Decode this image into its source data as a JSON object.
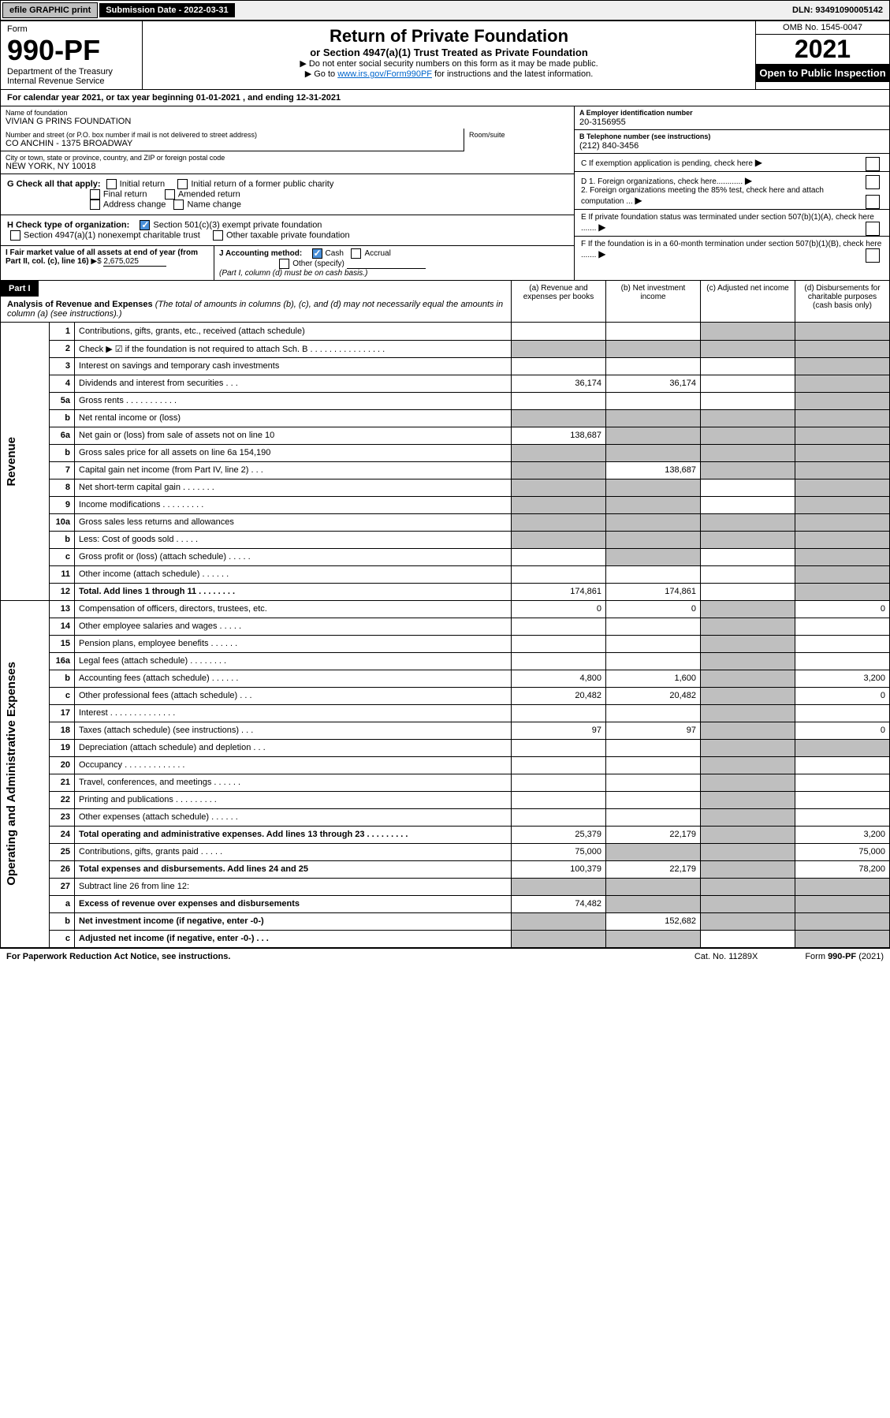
{
  "topbar": {
    "efile": "efile GRAPHIC print",
    "sub_label": "Submission Date - 2022-03-31",
    "dln": "DLN: 93491090005142"
  },
  "header": {
    "form_label": "Form",
    "form_no": "990-PF",
    "dept": "Department of the Treasury",
    "irs": "Internal Revenue Service",
    "title": "Return of Private Foundation",
    "subtitle": "or Section 4947(a)(1) Trust Treated as Private Foundation",
    "inst1": "▶ Do not enter social security numbers on this form as it may be made public.",
    "inst2_a": "▶ Go to ",
    "inst2_link": "www.irs.gov/Form990PF",
    "inst2_b": " for instructions and the latest information.",
    "omb": "OMB No. 1545-0047",
    "year": "2021",
    "inspect": "Open to Public Inspection"
  },
  "calyear": "For calendar year 2021, or tax year beginning 01-01-2021              , and ending 12-31-2021",
  "info": {
    "name_label": "Name of foundation",
    "name": "VIVIAN G PRINS FOUNDATION",
    "addr_label": "Number and street (or P.O. box number if mail is not delivered to street address)",
    "addr": "CO ANCHIN - 1375 BROADWAY",
    "room_label": "Room/suite",
    "city_label": "City or town, state or province, country, and ZIP or foreign postal code",
    "city": "NEW YORK, NY  10018",
    "ein_label": "A Employer identification number",
    "ein": "20-3156955",
    "tel_label": "B Telephone number (see instructions)",
    "tel": "(212) 840-3456",
    "c_label": "C If exemption application is pending, check here",
    "d1": "D 1. Foreign organizations, check here............",
    "d2": "2. Foreign organizations meeting the 85% test, check here and attach computation ...",
    "e_label": "E  If private foundation status was terminated under section 507(b)(1)(A), check here .......",
    "f_label": "F  If the foundation is in a 60-month termination under section 507(b)(1)(B), check here ......."
  },
  "checks": {
    "g_label": "G Check all that apply:",
    "initial": "Initial return",
    "initial_former": "Initial return of a former public charity",
    "final": "Final return",
    "amended": "Amended return",
    "addr_change": "Address change",
    "name_change": "Name change",
    "h_label": "H Check type of organization:",
    "h1": "Section 501(c)(3) exempt private foundation",
    "h2": "Section 4947(a)(1) nonexempt charitable trust",
    "h3": "Other taxable private foundation",
    "i_label": "I Fair market value of all assets at end of year (from Part II, col. (c), line 16)",
    "i_val": "2,675,025",
    "j_label": "J Accounting method:",
    "j_cash": "Cash",
    "j_accrual": "Accrual",
    "j_other": "Other (specify)",
    "j_note": "(Part I, column (d) must be on cash basis.)"
  },
  "part1": {
    "label": "Part I",
    "title": "Analysis of Revenue and Expenses",
    "title_note": " (The total of amounts in columns (b), (c), and (d) may not necessarily equal the amounts in column (a) (see instructions).)",
    "col_a": "(a)   Revenue and expenses per books",
    "col_b": "(b)   Net investment income",
    "col_c": "(c)   Adjusted net income",
    "col_d": "(d)   Disbursements for charitable purposes (cash basis only)"
  },
  "sidelabels": {
    "revenue": "Revenue",
    "opex": "Operating and Administrative Expenses"
  },
  "rows": [
    {
      "n": "1",
      "d": "Contributions, gifts, grants, etc., received (attach schedule)",
      "a": "",
      "b": "",
      "c": "shade",
      "dd": "shade"
    },
    {
      "n": "2",
      "d": "Check ▶ ☑ if the foundation is not required to attach Sch. B   .  .  .  .  .  .  .  .  .  .  .  .  .  .  .  .",
      "a": "shade",
      "b": "shade",
      "c": "shade",
      "dd": "shade"
    },
    {
      "n": "3",
      "d": "Interest on savings and temporary cash investments",
      "a": "",
      "b": "",
      "c": "",
      "dd": "shade"
    },
    {
      "n": "4",
      "d": "Dividends and interest from securities   .   .   .",
      "a": "36,174",
      "b": "36,174",
      "c": "",
      "dd": "shade"
    },
    {
      "n": "5a",
      "d": "Gross rents   .   .   .   .   .   .   .   .   .   .   .",
      "a": "",
      "b": "",
      "c": "",
      "dd": "shade"
    },
    {
      "n": "b",
      "d": "Net rental income or (loss)  ",
      "a": "shade",
      "b": "shade",
      "c": "shade",
      "dd": "shade"
    },
    {
      "n": "6a",
      "d": "Net gain or (loss) from sale of assets not on line 10",
      "a": "138,687",
      "b": "shade",
      "c": "shade",
      "dd": "shade"
    },
    {
      "n": "b",
      "d": "Gross sales price for all assets on line 6a            154,190",
      "a": "shade",
      "b": "shade",
      "c": "shade",
      "dd": "shade"
    },
    {
      "n": "7",
      "d": "Capital gain net income (from Part IV, line 2)   .   .   .",
      "a": "shade",
      "b": "138,687",
      "c": "shade",
      "dd": "shade"
    },
    {
      "n": "8",
      "d": "Net short-term capital gain   .   .   .   .   .   .   .",
      "a": "shade",
      "b": "shade",
      "c": "",
      "dd": "shade"
    },
    {
      "n": "9",
      "d": "Income modifications  .   .   .   .   .   .   .   .   .",
      "a": "shade",
      "b": "shade",
      "c": "",
      "dd": "shade"
    },
    {
      "n": "10a",
      "d": "Gross sales less returns and allowances",
      "a": "shade",
      "b": "shade",
      "c": "shade",
      "dd": "shade"
    },
    {
      "n": "b",
      "d": "Less: Cost of goods sold   .   .   .   .   .",
      "a": "shade",
      "b": "shade",
      "c": "shade",
      "dd": "shade"
    },
    {
      "n": "c",
      "d": "Gross profit or (loss) (attach schedule)   .   .   .   .   .",
      "a": "",
      "b": "shade",
      "c": "",
      "dd": "shade"
    },
    {
      "n": "11",
      "d": "Other income (attach schedule)   .   .   .   .   .   .",
      "a": "",
      "b": "",
      "c": "",
      "dd": "shade"
    },
    {
      "n": "12",
      "d": "Total. Add lines 1 through 11   .   .   .   .   .   .   .   .",
      "a": "174,861",
      "b": "174,861",
      "c": "",
      "dd": "shade",
      "bold": true
    },
    {
      "n": "13",
      "d": "Compensation of officers, directors, trustees, etc.",
      "a": "0",
      "b": "0",
      "c": "shade",
      "dd": "0"
    },
    {
      "n": "14",
      "d": "Other employee salaries and wages   .   .   .   .   .",
      "a": "",
      "b": "",
      "c": "shade",
      "dd": ""
    },
    {
      "n": "15",
      "d": "Pension plans, employee benefits  .   .   .   .   .   .",
      "a": "",
      "b": "",
      "c": "shade",
      "dd": ""
    },
    {
      "n": "16a",
      "d": "Legal fees (attach schedule)  .   .   .   .   .   .   .   .",
      "a": "",
      "b": "",
      "c": "shade",
      "dd": ""
    },
    {
      "n": "b",
      "d": "Accounting fees (attach schedule)  .   .   .   .   .   .",
      "a": "4,800",
      "b": "1,600",
      "c": "shade",
      "dd": "3,200"
    },
    {
      "n": "c",
      "d": "Other professional fees (attach schedule)   .   .   .",
      "a": "20,482",
      "b": "20,482",
      "c": "shade",
      "dd": "0"
    },
    {
      "n": "17",
      "d": "Interest  .   .   .   .   .   .   .   .   .   .   .   .   .   .",
      "a": "",
      "b": "",
      "c": "shade",
      "dd": ""
    },
    {
      "n": "18",
      "d": "Taxes (attach schedule) (see instructions)   .   .   .",
      "a": "97",
      "b": "97",
      "c": "shade",
      "dd": "0"
    },
    {
      "n": "19",
      "d": "Depreciation (attach schedule) and depletion   .   .   .",
      "a": "",
      "b": "",
      "c": "shade",
      "dd": "shade"
    },
    {
      "n": "20",
      "d": "Occupancy  .   .   .   .   .   .   .   .   .   .   .   .   .",
      "a": "",
      "b": "",
      "c": "shade",
      "dd": ""
    },
    {
      "n": "21",
      "d": "Travel, conferences, and meetings  .   .   .   .   .   .",
      "a": "",
      "b": "",
      "c": "shade",
      "dd": ""
    },
    {
      "n": "22",
      "d": "Printing and publications  .   .   .   .   .   .   .   .   .",
      "a": "",
      "b": "",
      "c": "shade",
      "dd": ""
    },
    {
      "n": "23",
      "d": "Other expenses (attach schedule)  .   .   .   .   .   .",
      "a": "",
      "b": "",
      "c": "shade",
      "dd": ""
    },
    {
      "n": "24",
      "d": "Total operating and administrative expenses. Add lines 13 through 23   .   .   .   .   .   .   .   .   .",
      "a": "25,379",
      "b": "22,179",
      "c": "shade",
      "dd": "3,200",
      "bold": true
    },
    {
      "n": "25",
      "d": "Contributions, gifts, grants paid   .   .   .   .   .",
      "a": "75,000",
      "b": "shade",
      "c": "shade",
      "dd": "75,000"
    },
    {
      "n": "26",
      "d": "Total expenses and disbursements. Add lines 24 and 25",
      "a": "100,379",
      "b": "22,179",
      "c": "shade",
      "dd": "78,200",
      "bold": true
    },
    {
      "n": "27",
      "d": "Subtract line 26 from line 12:",
      "a": "shade",
      "b": "shade",
      "c": "shade",
      "dd": "shade"
    },
    {
      "n": "a",
      "d": "Excess of revenue over expenses and disbursements",
      "a": "74,482",
      "b": "shade",
      "c": "shade",
      "dd": "shade",
      "bold": true
    },
    {
      "n": "b",
      "d": "Net investment income (if negative, enter -0-)",
      "a": "shade",
      "b": "152,682",
      "c": "shade",
      "dd": "shade",
      "bold": true
    },
    {
      "n": "c",
      "d": "Adjusted net income (if negative, enter -0-)   .   .   .",
      "a": "shade",
      "b": "shade",
      "c": "",
      "dd": "shade",
      "bold": true
    }
  ],
  "footer": {
    "left": "For Paperwork Reduction Act Notice, see instructions.",
    "mid": "Cat. No. 11289X",
    "right": "Form 990-PF (2021)"
  },
  "colors": {
    "shade": "#bfbfbf",
    "black": "#000000",
    "link": "#0066cc",
    "check": "#4a90d9"
  }
}
